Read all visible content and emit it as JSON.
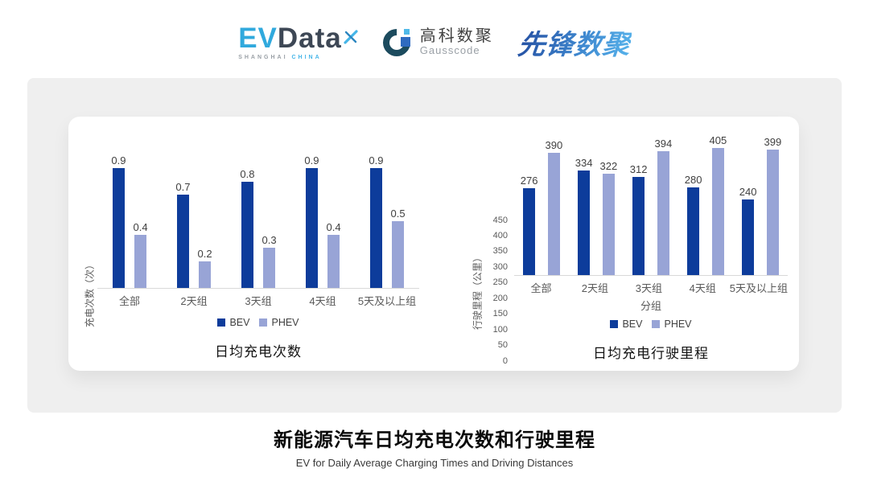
{
  "header": {
    "evdata_logo": {
      "ev": "EV",
      "data": "Data",
      "tagline_left": "SHANGHAI",
      "tagline_right": "CHINA"
    },
    "gausscode_logo": {
      "name_cn": "高科数聚",
      "name_en": "Gausscode"
    },
    "pioneer_logo": {
      "text": "先锋数聚"
    }
  },
  "colors": {
    "bev": "#0D3C9B",
    "phev": "#98A4D6",
    "card_bg": "#EFEFEF",
    "accent_blue": "#35AEE2",
    "axis_line": "#D9D9D9"
  },
  "chart_data": [
    {
      "type": "bar",
      "title": "日均充电次数",
      "categories": [
        "全部",
        "2天组",
        "3天组",
        "4天组",
        "5天及以上组"
      ],
      "series": [
        {
          "name": "BEV",
          "values": [
            0.9,
            0.7,
            0.8,
            0.9,
            0.9
          ],
          "color": "#0D3C9B"
        },
        {
          "name": "PHEV",
          "values": [
            0.4,
            0.2,
            0.3,
            0.4,
            0.5
          ],
          "color": "#98A4D6"
        }
      ],
      "xlabel": "",
      "ylabel": "充电次数（次）",
      "ylim": [
        0,
        1
      ],
      "ytick_step": null,
      "y_ticks_visible": false,
      "label_format": "1dp",
      "data_labels": true,
      "grid": false,
      "legend_position": "bottom"
    },
    {
      "type": "bar",
      "title": "日均充电行驶里程",
      "categories": [
        "全部",
        "2天组",
        "3天组",
        "4天组",
        "5天及以上组"
      ],
      "series": [
        {
          "name": "BEV",
          "values": [
            276,
            334,
            312,
            280,
            240
          ],
          "color": "#0D3C9B"
        },
        {
          "name": "PHEV",
          "values": [
            390,
            322,
            394,
            405,
            399
          ],
          "color": "#98A4D6"
        }
      ],
      "xlabel": "分组",
      "ylabel": "行驶里程（公里）",
      "ylim": [
        0,
        450
      ],
      "ytick_step": 50,
      "y_ticks_visible": true,
      "label_format": "int",
      "data_labels": true,
      "grid": false,
      "legend_position": "bottom"
    }
  ],
  "footer": {
    "title": "新能源汽车日均充电次数和行驶里程",
    "subtitle": "EV for Daily Average Charging Times and Driving Distances"
  }
}
